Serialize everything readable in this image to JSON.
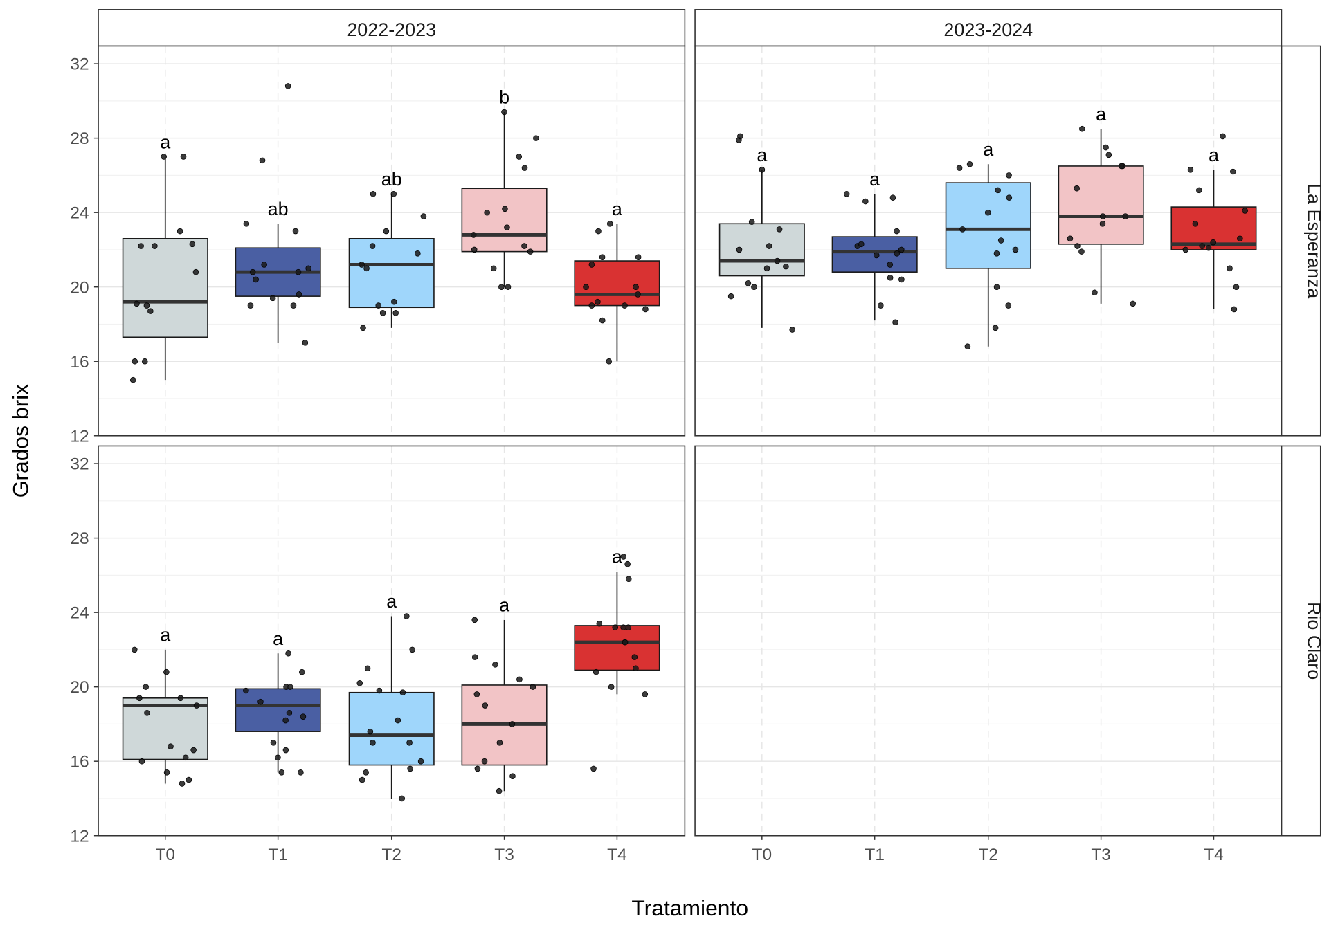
{
  "chart_data": {
    "type": "box",
    "ylabel": "Grados brix",
    "xlabel": "Tratamiento",
    "categories": [
      "T0",
      "T1",
      "T2",
      "T3",
      "T4"
    ],
    "ylim": [
      12,
      33
    ],
    "yticks": [
      12,
      16,
      20,
      24,
      28,
      32
    ],
    "grid": true,
    "legend": "none",
    "colors": {
      "T0": "#cfd8d9",
      "T1": "#4a5fa3",
      "T2": "#9fd6fb",
      "T3": "#f2c4c6",
      "T4": "#d93232"
    },
    "facets": {
      "columns": [
        "2022-2023",
        "2023-2024"
      ],
      "rows": [
        "La Esperanza",
        "Rio Claro"
      ]
    },
    "panels": [
      {
        "column": "2022-2023",
        "row": "La Esperanza",
        "boxes": [
          {
            "cat": "T0",
            "q1": 17.3,
            "median": 19.2,
            "q3": 22.6,
            "whisker_low": 15.0,
            "whisker_high": 27.0,
            "letter": "a",
            "points": [
              15.0,
              16.0,
              16.0,
              18.7,
              19.0,
              19.1,
              20.8,
              22.2,
              22.2,
              22.3,
              23.0,
              27.0,
              27.0
            ]
          },
          {
            "cat": "T1",
            "q1": 19.5,
            "median": 20.8,
            "q3": 22.1,
            "whisker_low": 17.0,
            "whisker_high": 23.4,
            "letter": "ab",
            "points": [
              17.0,
              19.0,
              19.0,
              19.4,
              19.6,
              20.4,
              20.8,
              20.8,
              21.0,
              21.2,
              23.0,
              23.4,
              26.8,
              30.8
            ]
          },
          {
            "cat": "T2",
            "q1": 18.9,
            "median": 21.2,
            "q3": 22.6,
            "whisker_low": 17.8,
            "whisker_high": 25.0,
            "letter": "ab",
            "points": [
              17.8,
              18.6,
              18.6,
              19.0,
              19.2,
              21.0,
              21.2,
              21.8,
              22.2,
              23.0,
              23.8,
              25.0,
              25.0
            ]
          },
          {
            "cat": "T3",
            "q1": 21.9,
            "median": 22.8,
            "q3": 25.3,
            "whisker_low": 20.0,
            "whisker_high": 29.4,
            "letter": "b",
            "points": [
              20.0,
              20.0,
              21.0,
              21.9,
              22.0,
              22.2,
              22.8,
              23.2,
              24.0,
              24.2,
              26.4,
              27.0,
              28.0,
              29.4
            ]
          },
          {
            "cat": "T4",
            "q1": 19.0,
            "median": 19.6,
            "q3": 21.4,
            "whisker_low": 16.0,
            "whisker_high": 23.4,
            "letter": "a",
            "points": [
              16.0,
              18.2,
              18.8,
              19.0,
              19.0,
              19.2,
              19.6,
              20.0,
              20.0,
              21.2,
              21.6,
              21.6,
              23.0,
              23.4
            ]
          }
        ]
      },
      {
        "column": "2023-2024",
        "row": "La Esperanza",
        "boxes": [
          {
            "cat": "T0",
            "q1": 20.6,
            "median": 21.4,
            "q3": 23.4,
            "whisker_low": 17.8,
            "whisker_high": 26.3,
            "letter": "a",
            "points": [
              17.7,
              19.5,
              20.0,
              20.2,
              21.0,
              21.1,
              21.4,
              22.0,
              22.2,
              23.1,
              23.5,
              26.3,
              27.9,
              28.1
            ]
          },
          {
            "cat": "T1",
            "q1": 20.8,
            "median": 21.9,
            "q3": 22.7,
            "whisker_low": 18.2,
            "whisker_high": 25.0,
            "letter": "a",
            "points": [
              18.1,
              19.0,
              20.4,
              20.5,
              21.2,
              21.7,
              21.8,
              22.0,
              22.2,
              22.3,
              23.0,
              24.6,
              24.8,
              25.0
            ]
          },
          {
            "cat": "T2",
            "q1": 21.0,
            "median": 23.1,
            "q3": 25.6,
            "whisker_low": 16.8,
            "whisker_high": 26.6,
            "letter": "a",
            "points": [
              16.8,
              17.8,
              19.0,
              20.0,
              21.8,
              22.0,
              22.5,
              23.1,
              24.0,
              24.8,
              25.2,
              26.0,
              26.4,
              26.6
            ]
          },
          {
            "cat": "T3",
            "q1": 22.3,
            "median": 23.8,
            "q3": 26.5,
            "whisker_low": 19.1,
            "whisker_high": 28.5,
            "letter": "a",
            "points": [
              19.1,
              19.7,
              21.9,
              22.2,
              22.6,
              23.4,
              23.8,
              23.8,
              25.3,
              26.5,
              26.5,
              27.1,
              27.5,
              28.5
            ]
          },
          {
            "cat": "T4",
            "q1": 22.0,
            "median": 22.3,
            "q3": 24.3,
            "whisker_low": 18.8,
            "whisker_high": 26.3,
            "letter": "a",
            "points": [
              18.8,
              20.0,
              21.0,
              22.0,
              22.1,
              22.2,
              22.4,
              22.6,
              23.4,
              24.1,
              25.2,
              26.2,
              26.3,
              28.1
            ]
          }
        ]
      },
      {
        "column": "2022-2023",
        "row": "Rio Claro",
        "boxes": [
          {
            "cat": "T0",
            "q1": 16.1,
            "median": 19.0,
            "q3": 19.4,
            "whisker_low": 14.8,
            "whisker_high": 22.0,
            "letter": "a",
            "points": [
              14.8,
              15.0,
              15.4,
              16.0,
              16.2,
              16.6,
              16.8,
              18.6,
              19.0,
              19.4,
              19.4,
              20.0,
              20.8,
              22.0
            ]
          },
          {
            "cat": "T1",
            "q1": 17.6,
            "median": 19.0,
            "q3": 19.9,
            "whisker_low": 15.4,
            "whisker_high": 21.8,
            "letter": "a",
            "points": [
              15.4,
              15.4,
              16.2,
              16.6,
              17.0,
              18.2,
              18.4,
              18.6,
              19.2,
              19.8,
              20.0,
              20.0,
              20.8,
              21.8
            ]
          },
          {
            "cat": "T2",
            "q1": 15.8,
            "median": 17.4,
            "q3": 19.7,
            "whisker_low": 14.0,
            "whisker_high": 23.8,
            "letter": "a",
            "points": [
              14.0,
              15.0,
              15.4,
              15.6,
              16.0,
              17.0,
              17.0,
              17.6,
              18.2,
              19.7,
              19.8,
              20.2,
              21.0,
              22.0,
              23.8
            ]
          },
          {
            "cat": "T3",
            "q1": 15.8,
            "median": 18.0,
            "q3": 20.1,
            "whisker_low": 14.4,
            "whisker_high": 23.6,
            "letter": "a",
            "points": [
              14.4,
              15.2,
              15.6,
              16.0,
              17.0,
              18.0,
              19.0,
              19.6,
              20.0,
              20.4,
              21.2,
              21.6,
              23.6
            ]
          },
          {
            "cat": "T4",
            "q1": 20.9,
            "median": 22.4,
            "q3": 23.3,
            "whisker_low": 19.6,
            "whisker_high": 26.2,
            "letter": "a",
            "points": [
              15.6,
              19.6,
              20.0,
              20.8,
              21.0,
              21.6,
              22.4,
              22.4,
              23.2,
              23.2,
              23.2,
              23.4,
              25.8,
              26.6,
              27.0
            ]
          }
        ]
      },
      {
        "column": "2023-2024",
        "row": "Rio Claro",
        "boxes": []
      }
    ]
  }
}
